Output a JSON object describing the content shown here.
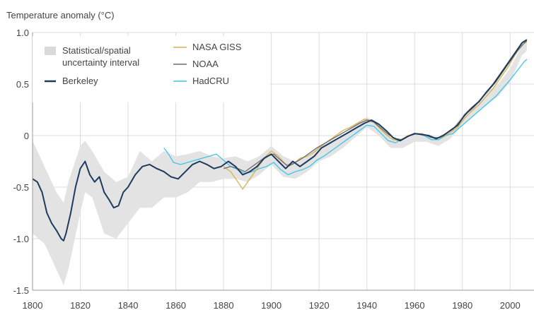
{
  "chart_data": {
    "type": "line",
    "ylabel": "Temperature anomaly (°C)",
    "xlabel": "",
    "xlim": [
      1800,
      2010
    ],
    "ylim": [
      -1.5,
      1.0
    ],
    "x_ticks": [
      1800,
      1820,
      1840,
      1860,
      1880,
      1900,
      1920,
      1940,
      1960,
      1980,
      2000
    ],
    "y_ticks": [
      {
        "value": 1.0,
        "label": "1.0"
      },
      {
        "value": 0.5,
        "label": "0.5"
      },
      {
        "value": 0,
        "label": "0"
      },
      {
        "value": -0.5,
        "label": "-0.5"
      },
      {
        "value": -1.0,
        "label": "-1.0"
      },
      {
        "value": -1.5,
        "label": "-1.5"
      }
    ],
    "grid": true,
    "legend": {
      "placement": "top-left",
      "band_label_line1": "Statistical/spatial",
      "band_label_line2": "uncertainty interval"
    },
    "uncertainty_band": {
      "x": [
        1800,
        1805,
        1810,
        1813,
        1815,
        1820,
        1822,
        1825,
        1830,
        1835,
        1840,
        1845,
        1850,
        1855,
        1860,
        1865,
        1870,
        1875,
        1880,
        1885,
        1890,
        1895,
        1900,
        1905,
        1910,
        1915,
        1920,
        1925,
        1930,
        1935,
        1940,
        1945,
        1950,
        1955,
        1960,
        1965,
        1970,
        1975,
        1980,
        1985,
        1990,
        1995,
        2000,
        2005,
        2007
      ],
      "upper": [
        -0.05,
        -0.3,
        -0.55,
        -0.65,
        -0.45,
        -0.1,
        -0.05,
        -0.15,
        -0.35,
        -0.45,
        -0.4,
        -0.15,
        -0.25,
        -0.15,
        -0.2,
        -0.18,
        -0.15,
        -0.2,
        -0.22,
        -0.2,
        -0.25,
        -0.2,
        -0.1,
        -0.2,
        -0.25,
        -0.2,
        -0.1,
        -0.05,
        -0.0,
        0.1,
        0.18,
        0.1,
        -0.02,
        -0.05,
        0.01,
        0.01,
        -0.02,
        0.04,
        0.2,
        0.3,
        0.42,
        0.5,
        0.65,
        0.88,
        0.92
      ],
      "lower": [
        -0.95,
        -1.05,
        -1.3,
        -1.45,
        -1.3,
        -0.75,
        -0.55,
        -0.6,
        -0.95,
        -1.0,
        -0.85,
        -0.7,
        -0.7,
        -0.6,
        -0.6,
        -0.55,
        -0.45,
        -0.45,
        -0.42,
        -0.42,
        -0.45,
        -0.38,
        -0.28,
        -0.4,
        -0.42,
        -0.35,
        -0.25,
        -0.2,
        -0.12,
        -0.02,
        0.08,
        0.0,
        -0.12,
        -0.12,
        -0.06,
        -0.06,
        -0.1,
        -0.03,
        0.1,
        0.2,
        0.3,
        0.38,
        0.52,
        0.78,
        0.82
      ]
    },
    "series": [
      {
        "name": "Berkeley",
        "color": "#1f3a5f",
        "x": [
          1800,
          1802,
          1804,
          1806,
          1808,
          1810,
          1812,
          1813,
          1814,
          1816,
          1818,
          1820,
          1822,
          1824,
          1826,
          1828,
          1830,
          1832,
          1834,
          1836,
          1838,
          1840,
          1843,
          1846,
          1849,
          1852,
          1855,
          1858,
          1861,
          1864,
          1867,
          1870,
          1873,
          1876,
          1879,
          1882,
          1885,
          1888,
          1891,
          1894,
          1897,
          1900,
          1903,
          1906,
          1909,
          1912,
          1915,
          1918,
          1921,
          1924,
          1927,
          1930,
          1933,
          1936,
          1939,
          1942,
          1945,
          1948,
          1951,
          1954,
          1957,
          1960,
          1963,
          1966,
          1969,
          1972,
          1975,
          1978,
          1981,
          1984,
          1987,
          1990,
          1993,
          1996,
          1999,
          2002,
          2005,
          2007
        ],
        "y": [
          -0.42,
          -0.45,
          -0.55,
          -0.75,
          -0.85,
          -0.92,
          -1.0,
          -1.02,
          -0.95,
          -0.75,
          -0.5,
          -0.32,
          -0.25,
          -0.38,
          -0.45,
          -0.4,
          -0.55,
          -0.62,
          -0.7,
          -0.68,
          -0.55,
          -0.5,
          -0.38,
          -0.3,
          -0.28,
          -0.32,
          -0.35,
          -0.4,
          -0.42,
          -0.35,
          -0.28,
          -0.25,
          -0.28,
          -0.32,
          -0.3,
          -0.25,
          -0.3,
          -0.38,
          -0.35,
          -0.3,
          -0.22,
          -0.18,
          -0.25,
          -0.32,
          -0.25,
          -0.3,
          -0.25,
          -0.2,
          -0.12,
          -0.08,
          -0.04,
          0.0,
          0.04,
          0.08,
          0.12,
          0.15,
          0.11,
          0.05,
          -0.02,
          -0.05,
          -0.01,
          0.02,
          0.01,
          0.0,
          -0.03,
          0.0,
          0.05,
          0.1,
          0.2,
          0.27,
          0.33,
          0.42,
          0.5,
          0.6,
          0.7,
          0.8,
          0.9,
          0.93
        ]
      },
      {
        "name": "NASA GISS",
        "color": "#d4b24c",
        "x": [
          1880,
          1883,
          1886,
          1888,
          1891,
          1894,
          1897,
          1900,
          1903,
          1906,
          1909,
          1912,
          1915,
          1918,
          1921,
          1924,
          1927,
          1930,
          1933,
          1936,
          1939,
          1942,
          1945,
          1948,
          1951,
          1954,
          1957,
          1960,
          1963,
          1966,
          1969,
          1972,
          1975,
          1978,
          1981,
          1984,
          1987,
          1990,
          1993,
          1996,
          1999,
          2002,
          2005,
          2007
        ],
        "y": [
          -0.3,
          -0.35,
          -0.45,
          -0.52,
          -0.42,
          -0.32,
          -0.22,
          -0.15,
          -0.2,
          -0.28,
          -0.28,
          -0.22,
          -0.2,
          -0.16,
          -0.1,
          -0.05,
          0.0,
          0.05,
          0.08,
          0.12,
          0.16,
          0.15,
          0.08,
          0.01,
          -0.04,
          -0.05,
          0.0,
          0.02,
          0.02,
          -0.01,
          -0.03,
          -0.01,
          0.03,
          0.08,
          0.17,
          0.24,
          0.3,
          0.38,
          0.46,
          0.56,
          0.66,
          0.78,
          0.88,
          0.91
        ]
      },
      {
        "name": "NOAA",
        "color": "#6e6e6e",
        "x": [
          1880,
          1883,
          1886,
          1889,
          1892,
          1895,
          1898,
          1901,
          1904,
          1907,
          1910,
          1913,
          1916,
          1919,
          1922,
          1925,
          1928,
          1931,
          1934,
          1937,
          1940,
          1943,
          1946,
          1949,
          1952,
          1955,
          1958,
          1961,
          1964,
          1967,
          1970,
          1973,
          1976,
          1979,
          1982,
          1985,
          1988,
          1991,
          1994,
          1997,
          2000,
          2003,
          2006,
          2007
        ],
        "y": [
          -0.32,
          -0.3,
          -0.32,
          -0.35,
          -0.3,
          -0.25,
          -0.2,
          -0.18,
          -0.24,
          -0.3,
          -0.26,
          -0.22,
          -0.17,
          -0.12,
          -0.08,
          -0.04,
          0.0,
          0.04,
          0.08,
          0.12,
          0.15,
          0.13,
          0.07,
          0.01,
          -0.03,
          -0.04,
          0.0,
          0.02,
          0.01,
          -0.02,
          -0.02,
          0.02,
          0.06,
          0.14,
          0.22,
          0.28,
          0.36,
          0.44,
          0.52,
          0.62,
          0.72,
          0.82,
          0.9,
          0.92
        ]
      },
      {
        "name": "HadCRU",
        "color": "#3cc6ea",
        "x": [
          1855,
          1857,
          1859,
          1862,
          1865,
          1868,
          1871,
          1874,
          1877,
          1880,
          1883,
          1886,
          1889,
          1892,
          1895,
          1898,
          1901,
          1904,
          1907,
          1910,
          1913,
          1916,
          1919,
          1922,
          1925,
          1928,
          1931,
          1934,
          1937,
          1940,
          1943,
          1946,
          1949,
          1952,
          1955,
          1958,
          1961,
          1964,
          1967,
          1970,
          1973,
          1976,
          1979,
          1982,
          1985,
          1988,
          1991,
          1994,
          1997,
          2000,
          2003,
          2006,
          2007
        ],
        "y": [
          -0.12,
          -0.18,
          -0.26,
          -0.28,
          -0.26,
          -0.24,
          -0.22,
          -0.2,
          -0.18,
          -0.24,
          -0.3,
          -0.33,
          -0.37,
          -0.35,
          -0.32,
          -0.3,
          -0.26,
          -0.33,
          -0.38,
          -0.35,
          -0.33,
          -0.3,
          -0.24,
          -0.2,
          -0.15,
          -0.1,
          -0.05,
          0.0,
          0.05,
          0.1,
          0.09,
          0.02,
          -0.05,
          -0.07,
          -0.03,
          0.0,
          0.02,
          0.0,
          -0.04,
          -0.04,
          0.0,
          0.02,
          0.08,
          0.14,
          0.2,
          0.26,
          0.32,
          0.38,
          0.46,
          0.54,
          0.63,
          0.72,
          0.74
        ]
      }
    ]
  }
}
